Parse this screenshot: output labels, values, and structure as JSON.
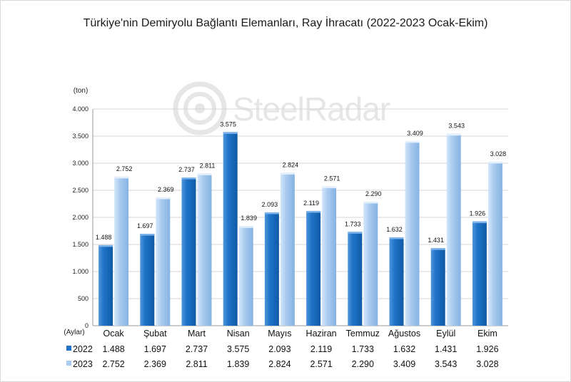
{
  "title": "Türkiye'nin Demiryolu Bağlantı Elemanları, Ray İhracatı (2022-2023 Ocak-Ekim)",
  "watermark": "SteelRadar",
  "colors": {
    "series_2022": "#1f74c8",
    "series_2023": "#a9cbef",
    "grid": "#d6d6d6",
    "axis": "#9a9a9a"
  },
  "chart_data": {
    "type": "bar",
    "ylabel": "(ton)",
    "xlabel": "(Aylar)",
    "ylim": [
      0,
      4000
    ],
    "yticks": [
      0,
      500,
      1000,
      1500,
      2000,
      2500,
      3000,
      3500,
      4000
    ],
    "ytick_labels": [
      "0",
      "500",
      "1.000",
      "1.500",
      "2.000",
      "2.500",
      "3.000",
      "3.500",
      "4.000"
    ],
    "categories": [
      "Ocak",
      "Şubat",
      "Mart",
      "Nisan",
      "Mayıs",
      "Haziran",
      "Temmuz",
      "Ağustos",
      "Eylül",
      "Ekim"
    ],
    "series": [
      {
        "name": "2022",
        "values": [
          1488,
          1697,
          2737,
          3575,
          2093,
          2119,
          1733,
          1632,
          1431,
          1926
        ],
        "labels": [
          "1.488",
          "1.697",
          "2.737",
          "3.575",
          "2.093",
          "2.119",
          "1.733",
          "1.632",
          "1.431",
          "1.926"
        ]
      },
      {
        "name": "2023",
        "values": [
          2752,
          2369,
          2811,
          1839,
          2824,
          2571,
          2290,
          3409,
          3543,
          3028
        ],
        "labels": [
          "2.752",
          "2.369",
          "2.811",
          "1.839",
          "2.824",
          "2.571",
          "2.290",
          "3.409",
          "3.543",
          "3.028"
        ]
      }
    ],
    "grid": true,
    "legend": "data-table-below"
  }
}
